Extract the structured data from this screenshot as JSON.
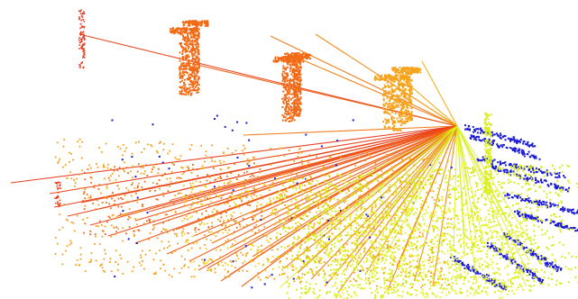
{
  "scene": {
    "kind": "lidar-point-cloud-correspondence-view",
    "background": "#ffffff",
    "palette": {
      "far": "#e8381a",
      "mid_far": "#f26a14",
      "mid": "#f7a21a",
      "near": "#f2cc10",
      "ground": "#d9ee1c",
      "ground_light": "#ecf43a",
      "structure": "#1a1ad6"
    }
  }
}
